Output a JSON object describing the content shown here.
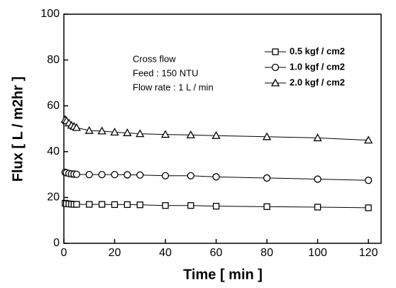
{
  "chart_data": {
    "type": "line",
    "x_label": "Time [ min ]",
    "y_label": "Flux [ L / m2hr ]",
    "annotations": [
      "Cross flow",
      "Feed : 150 NTU",
      "Flow rate : 1 L / min"
    ],
    "x": [
      0.5,
      1,
      2,
      3,
      4,
      5,
      10,
      15,
      20,
      25,
      30,
      40,
      50,
      60,
      80,
      100,
      120
    ],
    "series": [
      {
        "name": "0.5 kgf / cm2",
        "marker": "square",
        "color": "#000000",
        "values": [
          17.5,
          17.3,
          17.2,
          17.1,
          17.0,
          17.0,
          17.0,
          17.0,
          16.9,
          16.9,
          16.8,
          16.5,
          16.5,
          16.2,
          16.0,
          15.8,
          15.5
        ]
      },
      {
        "name": "1.0 kgf / cm2",
        "marker": "circle",
        "color": "#000000",
        "values": [
          31.0,
          30.8,
          30.5,
          30.3,
          30.2,
          30.1,
          30.0,
          30.0,
          30.0,
          29.9,
          29.8,
          29.5,
          29.5,
          29.0,
          28.5,
          28.0,
          27.5
        ]
      },
      {
        "name": "2.0 kgf / cm2",
        "marker": "triangle",
        "color": "#000000",
        "values": [
          54.0,
          53.5,
          52.5,
          51.5,
          51.0,
          50.5,
          49.2,
          49.0,
          48.5,
          48.2,
          47.8,
          47.5,
          47.3,
          47.0,
          46.5,
          46.0,
          45.0
        ]
      }
    ],
    "xlim": [
      0,
      125
    ],
    "ylim": [
      0,
      100
    ],
    "xticks": [
      0,
      20,
      40,
      60,
      80,
      100,
      120
    ],
    "yticks": [
      0,
      20,
      40,
      60,
      80,
      100
    ]
  }
}
